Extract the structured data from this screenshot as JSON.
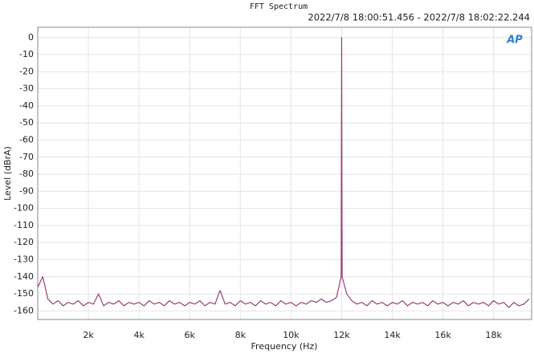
{
  "chart_data": {
    "type": "line",
    "title": "FFT Spectrum",
    "subtitle": "2022/7/8 18:00:51.456 - 2022/7/8 18:02:22.244",
    "logo_text": "AP",
    "x_label": "Frequency (Hz)",
    "y_label": "Level (dBrA)",
    "x": [
      0,
      200,
      400,
      600,
      800,
      1000,
      1200,
      1400,
      1600,
      1800,
      2000,
      2200,
      2400,
      2600,
      2800,
      3000,
      3200,
      3400,
      3600,
      3800,
      4000,
      4200,
      4400,
      4600,
      4800,
      5000,
      5200,
      5400,
      5600,
      5800,
      6000,
      6200,
      6400,
      6600,
      6800,
      7000,
      7200,
      7400,
      7600,
      7800,
      8000,
      8200,
      8400,
      8600,
      8800,
      9000,
      9200,
      9400,
      9600,
      9800,
      10000,
      10200,
      10400,
      10600,
      10800,
      11000,
      11200,
      11400,
      11600,
      11800,
      11980,
      12000,
      12020,
      12200,
      12400,
      12600,
      12800,
      13000,
      13200,
      13400,
      13600,
      13800,
      14000,
      14200,
      14400,
      14600,
      14800,
      15000,
      15200,
      15400,
      15600,
      15800,
      16000,
      16200,
      16400,
      16600,
      16800,
      17000,
      17200,
      17400,
      17600,
      17800,
      18000,
      18200,
      18400,
      18600,
      18800,
      19000,
      19200,
      19400
    ],
    "series": [
      {
        "color": "#973f78",
        "values": [
          -146,
          -140,
          -153,
          -156,
          -154,
          -157,
          -155,
          -156,
          -154,
          -157,
          -155,
          -156,
          -150,
          -157,
          -155,
          -156,
          -154,
          -157,
          -155,
          -156,
          -155,
          -157,
          -154,
          -156,
          -155,
          -157,
          -154,
          -156,
          -155,
          -157,
          -155,
          -156,
          -154,
          -157,
          -155,
          -156,
          -148,
          -156,
          -155,
          -157,
          -154,
          -156,
          -155,
          -157,
          -154,
          -156,
          -155,
          -157,
          -154,
          -156,
          -155,
          -157,
          -155,
          -156,
          -154,
          -155,
          -153,
          -155,
          -154,
          -152,
          -140,
          0,
          -140,
          -150,
          -154,
          -156,
          -155,
          -157,
          -154,
          -156,
          -155,
          -157,
          -155,
          -156,
          -154,
          -157,
          -155,
          -156,
          -155,
          -157,
          -154,
          -156,
          -155,
          -157,
          -155,
          -156,
          -154,
          -157,
          -155,
          -156,
          -155,
          -157,
          -154,
          -156,
          -155,
          -158,
          -155,
          -157,
          -156,
          -153
        ]
      }
    ],
    "xlim": [
      0,
      19500
    ],
    "ylim": [
      -165,
      6
    ],
    "xticks": [
      {
        "value": 2000,
        "label": "2k"
      },
      {
        "value": 4000,
        "label": "4k"
      },
      {
        "value": 6000,
        "label": "6k"
      },
      {
        "value": 8000,
        "label": "8k"
      },
      {
        "value": 10000,
        "label": "10k"
      },
      {
        "value": 12000,
        "label": "12k"
      },
      {
        "value": 14000,
        "label": "14k"
      },
      {
        "value": 16000,
        "label": "16k"
      },
      {
        "value": 18000,
        "label": "18k"
      }
    ],
    "yticks": [
      0,
      -10,
      -20,
      -30,
      -40,
      -50,
      -60,
      -70,
      -80,
      -90,
      -100,
      -110,
      -120,
      -130,
      -140,
      -150,
      -160
    ],
    "grid": true
  }
}
